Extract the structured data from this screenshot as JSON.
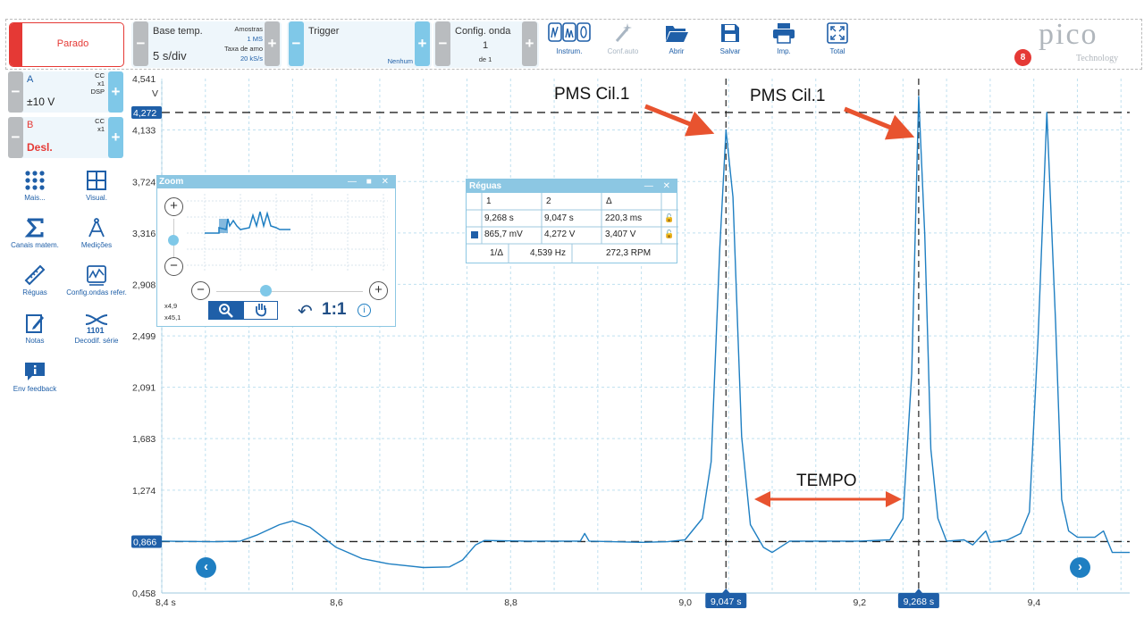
{
  "toolbar": {
    "run_state_label": "Parado",
    "timebase_title": "Base temp.",
    "timebase_value": "5 s/div",
    "samples_title": "Amostras",
    "samples_value": "1 MS",
    "rate_title": "Taxa de amo",
    "rate_value": "20 kS/s",
    "trigger_title": "Trigger",
    "trigger_mode": "Nenhum",
    "waveform_title": "Config. onda",
    "waveform_index": "1",
    "waveform_of": "de 1",
    "instruments_label": "Instrum.",
    "autosetup_label": "Conf.auto",
    "open_label": "Abrir",
    "save_label": "Salvar",
    "print_label": "Imp.",
    "fullscreen_label": "Total",
    "notification_count": "8"
  },
  "logo": {
    "word": "pico",
    "tagline": "Technology"
  },
  "channels": {
    "a": {
      "name": "A",
      "range": "±10 V",
      "coupling": "CC",
      "probe": "x1",
      "extra": "DSP"
    },
    "b": {
      "name": "B",
      "state": "Desl.",
      "coupling": "CC",
      "probe": "x1"
    }
  },
  "tools": {
    "more": "Mais...",
    "view": "Visual.",
    "math": "Canais matem.",
    "measure": "Medições",
    "rulers": "Réguas",
    "ref": "Config.ondas refer.",
    "notes": "Notas",
    "decode": "Decodif. série",
    "feedback": "Env feedback"
  },
  "chart_data": {
    "type": "line",
    "ylabel": "V",
    "xlim": [
      8.4,
      9.51
    ],
    "ylim": [
      0.458,
      4.541
    ],
    "x_ticks": [
      "8,4 s",
      "8,6",
      "8,8",
      "9,0",
      "9,2",
      "9,4"
    ],
    "x_tick_values": [
      8.4,
      8.6,
      8.8,
      9.0,
      9.2,
      9.4
    ],
    "y_ticks": [
      "4,541",
      "4,133",
      "3,724",
      "3,316",
      "2,908",
      "2,499",
      "2,091",
      "1,683",
      "1,274",
      "0,866",
      "0,458"
    ],
    "y_tick_values": [
      4.541,
      4.133,
      3.724,
      3.316,
      2.908,
      2.499,
      2.091,
      1.683,
      1.274,
      0.866,
      0.458
    ],
    "ruler_h_labels": [
      "4,272",
      "0,866"
    ],
    "ruler_h_values": [
      4.272,
      0.866
    ],
    "ruler_v_labels": [
      "9,047 s",
      "9,268 s"
    ],
    "ruler_v_values": [
      9.047,
      9.268
    ],
    "series": [
      {
        "color": "#1f7fc2",
        "points": [
          [
            8.4,
            0.87
          ],
          [
            8.46,
            0.865
          ],
          [
            8.49,
            0.87
          ],
          [
            8.51,
            0.92
          ],
          [
            8.535,
            1.0
          ],
          [
            8.55,
            1.03
          ],
          [
            8.57,
            0.98
          ],
          [
            8.6,
            0.82
          ],
          [
            8.63,
            0.73
          ],
          [
            8.66,
            0.69
          ],
          [
            8.7,
            0.66
          ],
          [
            8.73,
            0.665
          ],
          [
            8.745,
            0.72
          ],
          [
            8.76,
            0.84
          ],
          [
            8.77,
            0.875
          ],
          [
            8.82,
            0.87
          ],
          [
            8.88,
            0.87
          ],
          [
            8.885,
            0.93
          ],
          [
            8.89,
            0.87
          ],
          [
            8.95,
            0.86
          ],
          [
            8.98,
            0.865
          ],
          [
            9.0,
            0.88
          ],
          [
            9.02,
            1.05
          ],
          [
            9.03,
            1.5
          ],
          [
            9.04,
            3.2
          ],
          [
            9.047,
            4.133
          ],
          [
            9.055,
            3.6
          ],
          [
            9.065,
            1.7
          ],
          [
            9.075,
            1.0
          ],
          [
            9.09,
            0.82
          ],
          [
            9.1,
            0.78
          ],
          [
            9.12,
            0.87
          ],
          [
            9.15,
            0.87
          ],
          [
            9.2,
            0.87
          ],
          [
            9.235,
            0.88
          ],
          [
            9.25,
            1.05
          ],
          [
            9.26,
            2.2
          ],
          [
            9.268,
            4.4
          ],
          [
            9.275,
            3.3
          ],
          [
            9.282,
            1.6
          ],
          [
            9.29,
            1.05
          ],
          [
            9.3,
            0.87
          ],
          [
            9.32,
            0.88
          ],
          [
            9.33,
            0.84
          ],
          [
            9.345,
            0.95
          ],
          [
            9.35,
            0.86
          ],
          [
            9.37,
            0.88
          ],
          [
            9.385,
            0.93
          ],
          [
            9.395,
            1.1
          ],
          [
            9.405,
            2.5
          ],
          [
            9.415,
            4.272
          ],
          [
            9.425,
            2.6
          ],
          [
            9.432,
            1.2
          ],
          [
            9.44,
            0.95
          ],
          [
            9.45,
            0.9
          ],
          [
            9.47,
            0.9
          ],
          [
            9.48,
            0.95
          ],
          [
            9.49,
            0.78
          ],
          [
            9.51,
            0.78
          ]
        ]
      }
    ]
  },
  "annotations": {
    "pms1": "PMS Cil.1",
    "pms2": "PMS Cil.1",
    "tempo": "TEMPO"
  },
  "zoom": {
    "title": "Zoom",
    "x_factor": "x4,9",
    "y_factor": "x45,1",
    "ratio": "1:1"
  },
  "rulers": {
    "title": "Réguas",
    "h1": "1",
    "h2": "2",
    "hd": "Δ",
    "t1": "9,268 s",
    "t2": "9,047 s",
    "td": "220,3 ms",
    "v1": "865,7 mV",
    "v2": "4,272 V",
    "vd": "3,407 V",
    "inv_label": "1/Δ",
    "freq": "4,539 Hz",
    "rpm": "272,3 RPM"
  }
}
